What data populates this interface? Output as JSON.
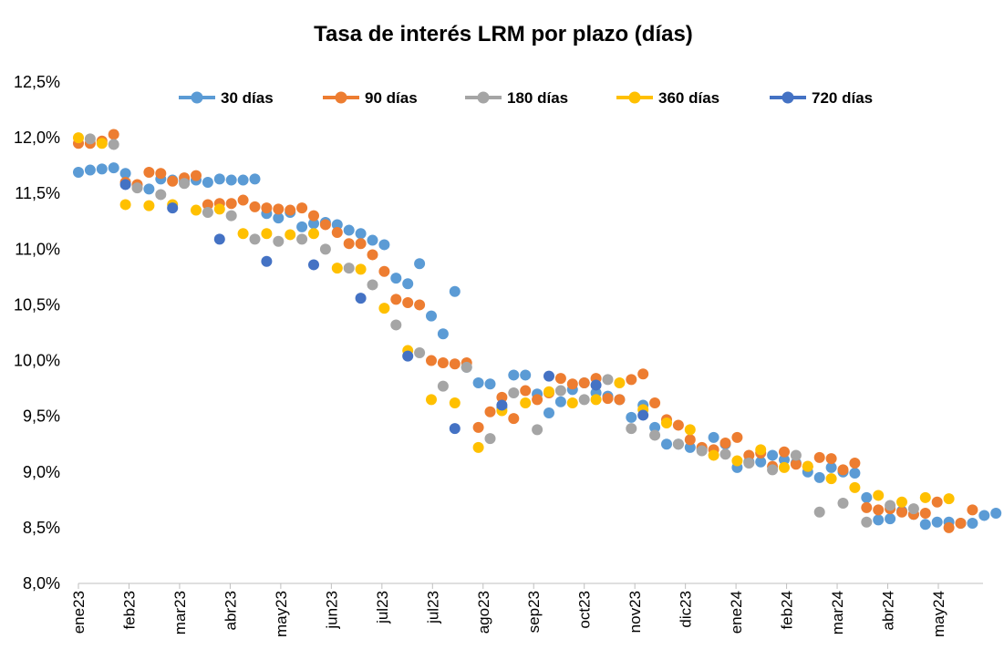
{
  "chart_data": {
    "type": "scatter",
    "title": "Tasa de interés LRM por plazo (días)",
    "xlabel": "",
    "ylabel": "",
    "ylim": [
      8.0,
      12.5
    ],
    "yticks": [
      "8,0%",
      "8,5%",
      "9,0%",
      "9,5%",
      "10,0%",
      "10,5%",
      "11,0%",
      "11,5%",
      "12,0%",
      "12,5%"
    ],
    "xticks": [
      "ene23",
      "feb23",
      "mar23",
      "abr23",
      "may23",
      "jun23",
      "jul23",
      "jul23",
      "ago23",
      "sep23",
      "oct23",
      "nov23",
      "dic23",
      "ene24",
      "feb24",
      "mar24",
      "abr24",
      "may24"
    ],
    "x_unit": "week",
    "grid": false,
    "legend_position": "top",
    "series": [
      {
        "name": "30 días",
        "color": "#5B9BD5",
        "points": [
          [
            0,
            11.69
          ],
          [
            1,
            11.71
          ],
          [
            2,
            11.72
          ],
          [
            3,
            11.73
          ],
          [
            4,
            11.68
          ],
          [
            6,
            11.54
          ],
          [
            7,
            11.63
          ],
          [
            8,
            11.62
          ],
          [
            9,
            11.61
          ],
          [
            10,
            11.62
          ],
          [
            11,
            11.6
          ],
          [
            12,
            11.63
          ],
          [
            13,
            11.62
          ],
          [
            14,
            11.62
          ],
          [
            15,
            11.63
          ],
          [
            16,
            11.32
          ],
          [
            17,
            11.28
          ],
          [
            18,
            11.33
          ],
          [
            19,
            11.2
          ],
          [
            20,
            11.23
          ],
          [
            21,
            11.24
          ],
          [
            22,
            11.22
          ],
          [
            23,
            11.17
          ],
          [
            24,
            11.14
          ],
          [
            25,
            11.08
          ],
          [
            26,
            11.04
          ],
          [
            27,
            10.74
          ],
          [
            28,
            10.69
          ],
          [
            29,
            10.87
          ],
          [
            30,
            10.4
          ],
          [
            31,
            10.24
          ],
          [
            32,
            10.62
          ],
          [
            33,
            9.94
          ],
          [
            34,
            9.8
          ],
          [
            35,
            9.79
          ],
          [
            36,
            9.58
          ],
          [
            37,
            9.87
          ],
          [
            38,
            9.87
          ],
          [
            39,
            9.7
          ],
          [
            40,
            9.53
          ],
          [
            41,
            9.63
          ],
          [
            42,
            9.74
          ],
          [
            43,
            9.8
          ],
          [
            44,
            9.71
          ],
          [
            45,
            9.68
          ],
          [
            46,
            9.65
          ],
          [
            47,
            9.49
          ],
          [
            48,
            9.6
          ],
          [
            49,
            9.4
          ],
          [
            50,
            9.25
          ],
          [
            51,
            9.25
          ],
          [
            52,
            9.22
          ],
          [
            53,
            9.21
          ],
          [
            54,
            9.31
          ],
          [
            55,
            9.25
          ],
          [
            56,
            9.04
          ],
          [
            57,
            9.09
          ],
          [
            58,
            9.09
          ],
          [
            59,
            9.15
          ],
          [
            60,
            9.11
          ],
          [
            61,
            9.08
          ],
          [
            62,
            9.0
          ],
          [
            63,
            8.95
          ],
          [
            64,
            9.04
          ],
          [
            65,
            9.0
          ],
          [
            66,
            8.99
          ],
          [
            67,
            8.77
          ],
          [
            68,
            8.57
          ],
          [
            69,
            8.58
          ],
          [
            70,
            8.65
          ],
          [
            71,
            8.62
          ],
          [
            72,
            8.53
          ],
          [
            73,
            8.55
          ],
          [
            74,
            8.55
          ],
          [
            75,
            8.54
          ],
          [
            76,
            8.54
          ],
          [
            77,
            8.61
          ],
          [
            78,
            8.63
          ]
        ]
      },
      {
        "name": "90 días",
        "color": "#ED7D31",
        "points": [
          [
            0,
            11.95
          ],
          [
            1,
            11.95
          ],
          [
            2,
            11.97
          ],
          [
            3,
            12.03
          ],
          [
            4,
            11.6
          ],
          [
            5,
            11.58
          ],
          [
            6,
            11.69
          ],
          [
            7,
            11.68
          ],
          [
            8,
            11.61
          ],
          [
            9,
            11.64
          ],
          [
            10,
            11.66
          ],
          [
            11,
            11.4
          ],
          [
            12,
            11.41
          ],
          [
            13,
            11.41
          ],
          [
            14,
            11.44
          ],
          [
            15,
            11.38
          ],
          [
            16,
            11.37
          ],
          [
            17,
            11.36
          ],
          [
            18,
            11.35
          ],
          [
            19,
            11.37
          ],
          [
            20,
            11.3
          ],
          [
            21,
            11.22
          ],
          [
            22,
            11.15
          ],
          [
            23,
            11.05
          ],
          [
            24,
            11.05
          ],
          [
            25,
            10.95
          ],
          [
            26,
            10.8
          ],
          [
            27,
            10.55
          ],
          [
            28,
            10.52
          ],
          [
            29,
            10.5
          ],
          [
            30,
            10.0
          ],
          [
            31,
            9.98
          ],
          [
            32,
            9.97
          ],
          [
            33,
            9.98
          ],
          [
            34,
            9.4
          ],
          [
            35,
            9.54
          ],
          [
            36,
            9.67
          ],
          [
            37,
            9.48
          ],
          [
            38,
            9.73
          ],
          [
            39,
            9.65
          ],
          [
            40,
            9.71
          ],
          [
            41,
            9.84
          ],
          [
            42,
            9.79
          ],
          [
            43,
            9.8
          ],
          [
            44,
            9.84
          ],
          [
            45,
            9.66
          ],
          [
            46,
            9.65
          ],
          [
            47,
            9.83
          ],
          [
            48,
            9.88
          ],
          [
            49,
            9.62
          ],
          [
            50,
            9.47
          ],
          [
            51,
            9.42
          ],
          [
            52,
            9.29
          ],
          [
            53,
            9.22
          ],
          [
            54,
            9.2
          ],
          [
            55,
            9.26
          ],
          [
            56,
            9.31
          ],
          [
            57,
            9.15
          ],
          [
            58,
            9.17
          ],
          [
            59,
            9.05
          ],
          [
            60,
            9.18
          ],
          [
            61,
            9.07
          ],
          [
            62,
            9.05
          ],
          [
            63,
            9.13
          ],
          [
            64,
            9.12
          ],
          [
            65,
            9.02
          ],
          [
            66,
            9.08
          ],
          [
            67,
            8.68
          ],
          [
            68,
            8.66
          ],
          [
            69,
            8.67
          ],
          [
            70,
            8.64
          ],
          [
            71,
            8.62
          ],
          [
            72,
            8.63
          ],
          [
            73,
            8.73
          ],
          [
            74,
            8.5
          ],
          [
            75,
            8.54
          ],
          [
            76,
            8.66
          ]
        ]
      },
      {
        "name": "180 días",
        "color": "#A5A5A5",
        "points": [
          [
            1,
            11.99
          ],
          [
            3,
            11.94
          ],
          [
            5,
            11.55
          ],
          [
            7,
            11.49
          ],
          [
            9,
            11.59
          ],
          [
            11,
            11.33
          ],
          [
            13,
            11.3
          ],
          [
            15,
            11.09
          ],
          [
            17,
            11.07
          ],
          [
            19,
            11.09
          ],
          [
            21,
            11.0
          ],
          [
            23,
            10.83
          ],
          [
            25,
            10.68
          ],
          [
            27,
            10.32
          ],
          [
            29,
            10.07
          ],
          [
            31,
            9.77
          ],
          [
            33,
            9.94
          ],
          [
            35,
            9.3
          ],
          [
            37,
            9.71
          ],
          [
            39,
            9.38
          ],
          [
            41,
            9.73
          ],
          [
            43,
            9.65
          ],
          [
            45,
            9.83
          ],
          [
            47,
            9.39
          ],
          [
            49,
            9.33
          ],
          [
            51,
            9.25
          ],
          [
            53,
            9.19
          ],
          [
            55,
            9.16
          ],
          [
            57,
            9.08
          ],
          [
            59,
            9.02
          ],
          [
            61,
            9.15
          ],
          [
            63,
            8.64
          ],
          [
            65,
            8.72
          ],
          [
            67,
            8.55
          ],
          [
            69,
            8.7
          ],
          [
            71,
            8.67
          ]
        ]
      },
      {
        "name": "360 días",
        "color": "#FFC000",
        "points": [
          [
            0,
            12.0
          ],
          [
            2,
            11.95
          ],
          [
            4,
            11.4
          ],
          [
            6,
            11.39
          ],
          [
            8,
            11.4
          ],
          [
            10,
            11.35
          ],
          [
            12,
            11.36
          ],
          [
            14,
            11.14
          ],
          [
            16,
            11.14
          ],
          [
            18,
            11.13
          ],
          [
            20,
            11.14
          ],
          [
            22,
            10.83
          ],
          [
            24,
            10.82
          ],
          [
            26,
            10.47
          ],
          [
            28,
            10.09
          ],
          [
            30,
            9.65
          ],
          [
            32,
            9.62
          ],
          [
            34,
            9.22
          ],
          [
            36,
            9.55
          ],
          [
            38,
            9.62
          ],
          [
            40,
            9.72
          ],
          [
            42,
            9.62
          ],
          [
            44,
            9.65
          ],
          [
            46,
            9.8
          ],
          [
            48,
            9.56
          ],
          [
            50,
            9.44
          ],
          [
            52,
            9.38
          ],
          [
            54,
            9.15
          ],
          [
            56,
            9.1
          ],
          [
            58,
            9.2
          ],
          [
            60,
            9.04
          ],
          [
            62,
            9.05
          ],
          [
            64,
            8.94
          ],
          [
            66,
            8.86
          ],
          [
            68,
            8.79
          ],
          [
            70,
            8.73
          ],
          [
            72,
            8.77
          ],
          [
            74,
            8.76
          ]
        ]
      },
      {
        "name": "720 días",
        "color": "#4472C4",
        "points": [
          [
            4,
            11.58
          ],
          [
            8,
            11.37
          ],
          [
            12,
            11.09
          ],
          [
            16,
            10.89
          ],
          [
            20,
            10.86
          ],
          [
            24,
            10.56
          ],
          [
            28,
            10.04
          ],
          [
            32,
            9.39
          ],
          [
            36,
            9.6
          ],
          [
            40,
            9.86
          ],
          [
            44,
            9.78
          ],
          [
            48,
            9.51
          ]
        ]
      }
    ]
  }
}
